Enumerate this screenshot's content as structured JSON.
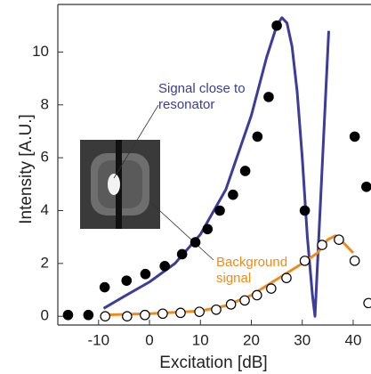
{
  "chart_data": {
    "type": "scatter",
    "xlabel": "Excitation [dB]",
    "ylabel": "Intensity [A.U.]",
    "xlim": [
      -18,
      43.5
    ],
    "ylim": [
      -0.33,
      11.8
    ],
    "xticks": [
      -10,
      0,
      10,
      20,
      30,
      40
    ],
    "yticks": [
      0,
      2,
      4,
      6,
      8,
      10
    ],
    "series": [
      {
        "marker": "filled",
        "color": "#000000",
        "x": [
          -16,
          -12,
          -8.8,
          -4.5,
          -0.8,
          3,
          6.4,
          9,
          11.4,
          13.8,
          16.4,
          18.8,
          21.2,
          23.4,
          25,
          30.5,
          40.3,
          42.6
        ],
        "values": [
          0.05,
          0.05,
          1.1,
          1.35,
          1.6,
          1.9,
          2.35,
          2.8,
          3.3,
          4.0,
          4.6,
          5.5,
          6.8,
          8.3,
          11.0,
          4.0,
          6.8,
          4.9
        ]
      },
      {
        "marker": "open",
        "color": "#000000",
        "x": [
          -8.7,
          -4.4,
          -0.9,
          2.6,
          6.1,
          9.8,
          13.1,
          16,
          18.7,
          21.1,
          23.9,
          26.9,
          30.5,
          33.9,
          37.2,
          40.3,
          43
        ],
        "values": [
          0.0,
          0.0,
          0.05,
          0.1,
          0.13,
          0.17,
          0.25,
          0.45,
          0.6,
          0.8,
          1.05,
          1.45,
          2.1,
          2.7,
          2.9,
          2.1,
          0.5
        ]
      }
    ],
    "lines": [
      {
        "color": "#3b3c9c",
        "x": [
          -9,
          -5,
          0,
          5,
          10,
          15,
          20,
          23,
          25,
          26,
          27,
          28,
          29,
          30,
          31,
          32,
          32.5,
          33,
          34,
          35.2
        ],
        "y": [
          0.3,
          0.75,
          1.3,
          2.0,
          3.1,
          4.8,
          7.6,
          9.8,
          11.0,
          11.3,
          11.1,
          10.2,
          8.5,
          6,
          3,
          0.8,
          0,
          2,
          6,
          10.8
        ]
      },
      {
        "color": "#f08a1c",
        "x": [
          -9,
          0,
          10,
          15,
          20,
          25,
          30,
          33,
          35,
          36.5,
          38,
          40
        ],
        "y": [
          0.05,
          0.1,
          0.2,
          0.4,
          0.8,
          1.4,
          2.0,
          2.4,
          2.9,
          3.05,
          2.8,
          2.4
        ]
      }
    ],
    "annotations": [
      {
        "lines": [
          "Signal close to",
          "resonator"
        ],
        "color": "#3b3c9c"
      },
      {
        "lines": [
          "Background",
          "signal"
        ],
        "color": "#f08a1c"
      }
    ]
  }
}
